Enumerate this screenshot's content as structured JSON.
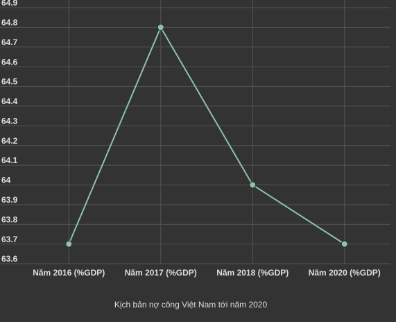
{
  "chart_data": {
    "type": "line",
    "title": "Kịch bản nợ công Việt Nam tới năm 2020",
    "categories": [
      "Năm 2016 (%GDP)",
      "Năm 2017 (%GDP)",
      "Năm 2018 (%GDP)",
      "Năm 2020 (%GDP)"
    ],
    "values": [
      63.7,
      64.8,
      64.0,
      63.7
    ],
    "color": "#8ec3a5",
    "ylim": [
      63.6,
      64.9
    ],
    "yticks": [
      63.6,
      63.7,
      63.8,
      63.9,
      64,
      64.1,
      64.2,
      64.3,
      64.4,
      64.5,
      64.6,
      64.7,
      64.8,
      64.9
    ],
    "grid": true
  }
}
